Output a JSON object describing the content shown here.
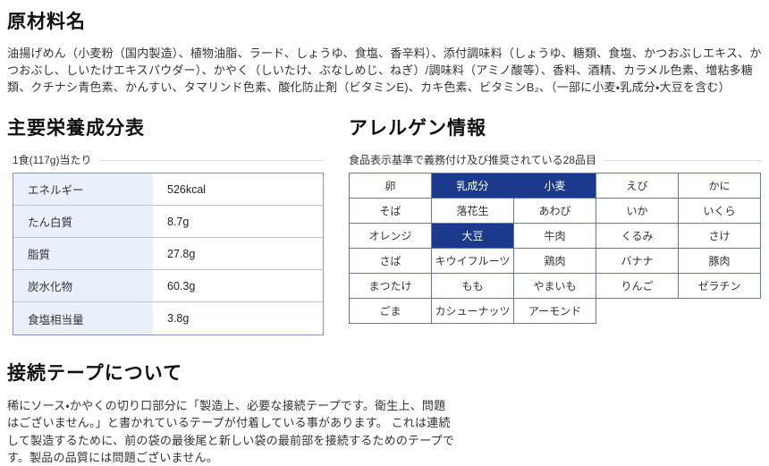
{
  "colors": {
    "highlight": "#1b3a8e",
    "grid_border": "#5b7ca8",
    "ntable_outer": "#8096b8",
    "ntable_inner": "#b9c5d5",
    "nlabel_bg": "#e9effb",
    "caption_line": "#dddddd"
  },
  "ingredients": {
    "title": "原材料名",
    "text": "油揚げめん（小麦粉（国内製造）、植物油脂、ラード、しょうゆ、食塩、香辛料）、添付調味料（しょうゆ、糖類、食塩、かつおぶしエキス、かつおぶし、しいたけエキスパウダー）、かやく（しいたけ、ぶなしめじ、ねぎ）/調味料（アミノ酸等）、香料、酒精、カラメル色素、増粘多糖類、クチナシ青色素、かんすい、タマリンド色素、酸化防止剤（ビタミンE)、カキ色素、ビタミンB₂、（一部に小麦・乳成分・大豆を含む）"
  },
  "nutrition": {
    "title": "主要栄養成分表",
    "caption": "1食(117g)当たり",
    "rows": [
      {
        "label": "エネルギー",
        "value": "526kcal"
      },
      {
        "label": "たん白質",
        "value": "8.7g"
      },
      {
        "label": "脂質",
        "value": "27.8g"
      },
      {
        "label": "炭水化物",
        "value": "60.3g"
      },
      {
        "label": "食塩相当量",
        "value": "3.8g"
      }
    ]
  },
  "allergens": {
    "title": "アレルゲン情報",
    "caption": "食品表示基準で義務付け及び推奨されている28品目",
    "highlighted": [
      "乳成分",
      "小麦",
      "大豆"
    ],
    "rows": [
      [
        "卵",
        "乳成分",
        "小麦",
        "えび",
        "かに"
      ],
      [
        "そば",
        "落花生",
        "あわび",
        "いか",
        "いくら"
      ],
      [
        "オレンジ",
        "大豆",
        "牛肉",
        "くるみ",
        "さけ"
      ],
      [
        "さば",
        "キウイフルーツ",
        "鶏肉",
        "バナナ",
        "豚肉"
      ],
      [
        "まつたけ",
        "もも",
        "やまいも",
        "りんご",
        "ゼラチン"
      ],
      [
        "ごま",
        "カシューナッツ",
        "アーモンド",
        null,
        null
      ]
    ]
  },
  "tape": {
    "title": "接続テープについて",
    "text": "稀にソース・かやくの切り口部分に「製造上、必要な接続テープです。衛生上、問題はございません。」と書かれているテープが付着している事があります。 これは連続して製造するために、前の袋の最後尾と新しい袋の最前部を接続するためのテープです。製品の品質には問題ございません。"
  }
}
